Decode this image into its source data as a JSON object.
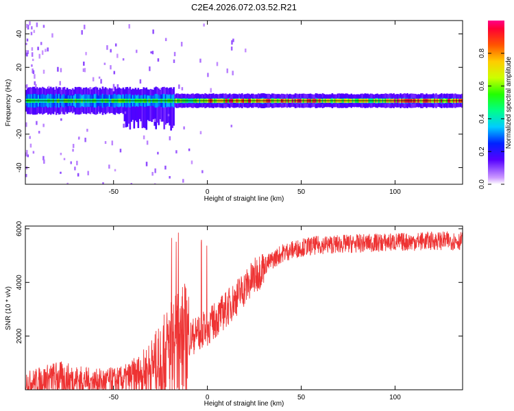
{
  "title": "C2E4.2026.072.03.52.R21",
  "chart_data": [
    {
      "type": "heatmap",
      "xlabel": "Height of straight line (km)",
      "ylabel": "Frequency (Hz)",
      "xlim": [
        -97,
        136
      ],
      "ylim": [
        -50,
        48
      ],
      "xticks": [
        -50,
        0,
        50,
        100
      ],
      "yticks": [
        -40,
        -20,
        0,
        20,
        40
      ],
      "colorbar": {
        "label": "Normalized spectral amplitude",
        "range": [
          0,
          1
        ],
        "ticks": [
          "0.0",
          "0.2",
          "0.4",
          "0.6",
          "0.8"
        ]
      },
      "grid": false
    },
    {
      "type": "line",
      "xlabel": "Height of straight line (km)",
      "ylabel": "SNR (10 * v/v)",
      "xlim": [
        -97,
        136
      ],
      "ylim": [
        0,
        6100
      ],
      "xticks": [
        -50,
        0,
        50,
        100
      ],
      "yticks": [
        2000,
        4000,
        6000
      ],
      "series_color": "#ee3333",
      "trend": {
        "x": [
          -97,
          -80,
          -60,
          -45,
          -35,
          -25,
          -18,
          -10,
          0,
          10,
          20,
          30,
          40,
          50,
          60,
          80,
          100,
          120,
          136
        ],
        "y": [
          250,
          450,
          300,
          350,
          600,
          1100,
          1700,
          1900,
          2300,
          3000,
          3800,
          4600,
          5100,
          5300,
          5400,
          5450,
          5500,
          5550,
          5550
        ]
      },
      "grid": false
    }
  ]
}
